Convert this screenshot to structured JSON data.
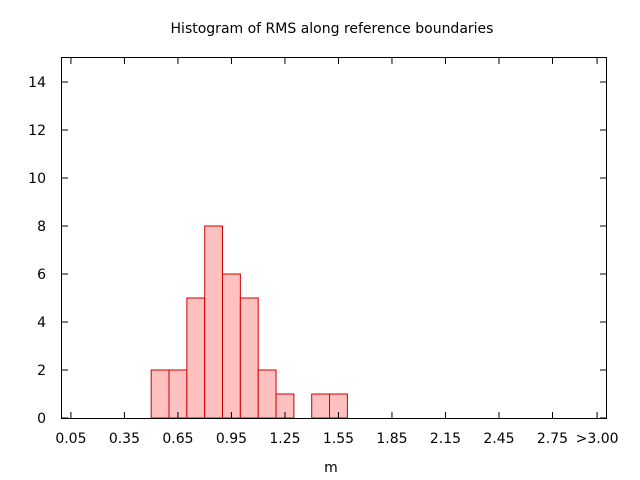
{
  "chart_data": {
    "type": "bar",
    "title": "Histogram of RMS along reference boundaries",
    "xlabel": "m",
    "ylabel": "",
    "x_tick_labels": [
      "0.05",
      "0.35",
      "0.65",
      "0.95",
      "1.25",
      "1.55",
      "1.85",
      "2.15",
      "2.45",
      "2.75",
      ">3.00"
    ],
    "x_tick_values": [
      0.05,
      0.35,
      0.65,
      0.95,
      1.25,
      1.55,
      1.85,
      2.15,
      2.45,
      2.75,
      3.0
    ],
    "y_tick_labels": [
      "0",
      "2",
      "4",
      "6",
      "8",
      "10",
      "12",
      "14"
    ],
    "xlim": [
      0.0,
      3.05
    ],
    "ylim": [
      0,
      15
    ],
    "bin_width": 0.1,
    "bins": [
      {
        "start": 0.5,
        "end": 0.6,
        "count": 2
      },
      {
        "start": 0.6,
        "end": 0.7,
        "count": 2
      },
      {
        "start": 0.7,
        "end": 0.8,
        "count": 5
      },
      {
        "start": 0.8,
        "end": 0.9,
        "count": 8
      },
      {
        "start": 0.9,
        "end": 1.0,
        "count": 6
      },
      {
        "start": 1.0,
        "end": 1.1,
        "count": 5
      },
      {
        "start": 1.1,
        "end": 1.2,
        "count": 2
      },
      {
        "start": 1.2,
        "end": 1.3,
        "count": 1
      },
      {
        "start": 1.3,
        "end": 1.4,
        "count": 0
      },
      {
        "start": 1.4,
        "end": 1.5,
        "count": 1
      },
      {
        "start": 1.5,
        "end": 1.6,
        "count": 1
      }
    ],
    "bar_fill": "#ffc0c0",
    "bar_stroke": "#cc0000",
    "grid": false
  }
}
